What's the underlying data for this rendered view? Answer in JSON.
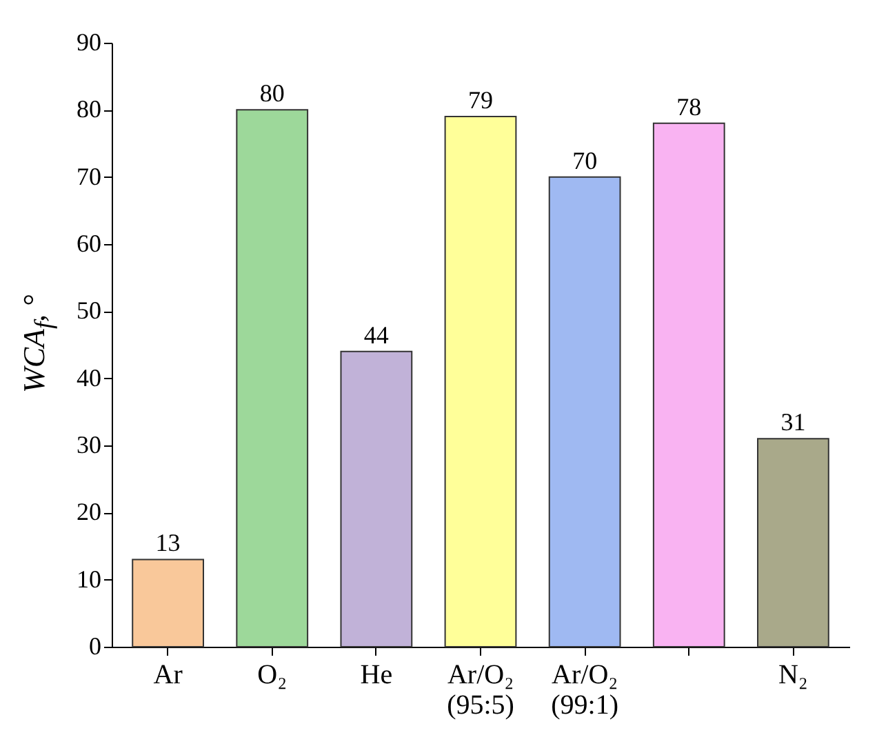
{
  "chart_data": {
    "type": "bar",
    "ylabel": "WCA$_{f}$, °",
    "categories": [
      "Ar",
      "O₂",
      "He",
      "Ar/O₂ (95:5)",
      "Ar/O₂ (99:1)",
      null,
      "N₂"
    ],
    "values": [
      13,
      80,
      44,
      79,
      70,
      78,
      31
    ],
    "colors": [
      "#f9c89a",
      "#9dd89a",
      "#c1b2d8",
      "#ffff99",
      "#9fb9f2",
      "#f9b3f2",
      "#a9a98a"
    ],
    "ylim": [
      0,
      90
    ],
    "yticks": [
      0,
      10,
      20,
      30,
      40,
      50,
      60,
      70,
      80,
      90
    ],
    "data_labels": true,
    "grid": false
  }
}
